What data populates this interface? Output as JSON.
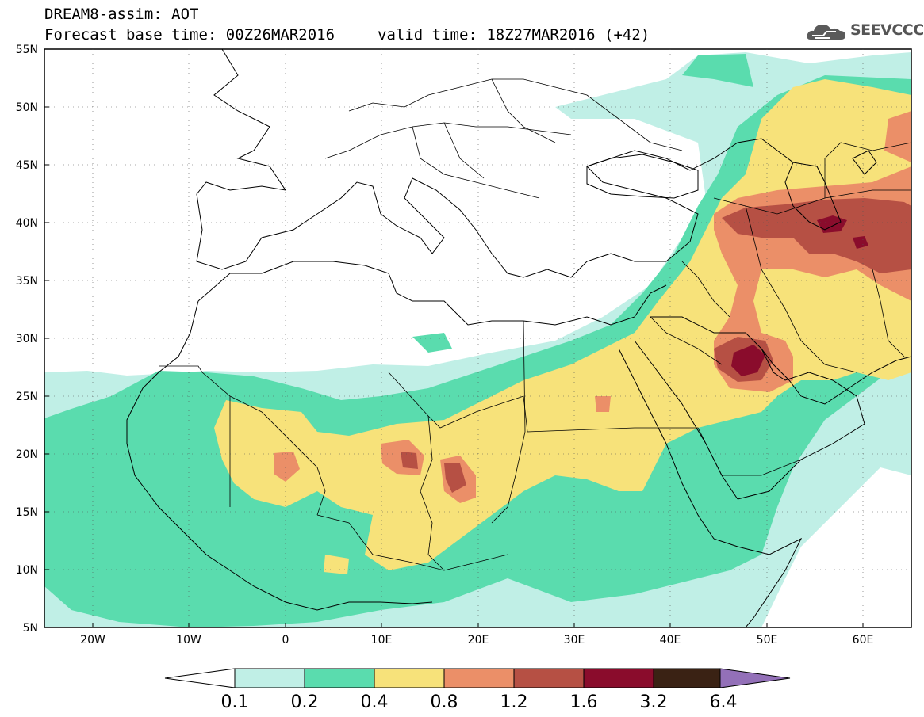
{
  "header": {
    "line1": "DREAM8-assim: AOT",
    "base_time": "Forecast base time: 00Z26MAR2016",
    "valid_time": "valid time: 18Z27MAR2016 (+42)"
  },
  "logo": {
    "text": "SEEVCCC",
    "icon": "cloud-icon"
  },
  "map": {
    "lon_range": [
      -25,
      65
    ],
    "lat_range": [
      5,
      55
    ],
    "lat_ticks": [
      "55N",
      "50N",
      "45N",
      "40N",
      "35N",
      "30N",
      "25N",
      "20N",
      "15N",
      "10N",
      "5N"
    ],
    "lon_ticks": [
      "20W",
      "10W",
      "0",
      "10E",
      "20E",
      "30E",
      "40E",
      "50E",
      "60E"
    ],
    "gridlines": "dotted",
    "ocean_color": "#ffffff",
    "borders_color": "#000000"
  },
  "colorbar": {
    "labels": [
      "0.1",
      "0.2",
      "0.4",
      "0.8",
      "1.2",
      "1.6",
      "3.2",
      "6.4"
    ],
    "colors": [
      "#ffffff",
      "#c0efe6",
      "#5adcae",
      "#f7e27a",
      "#eb8f68",
      "#b65044",
      "#8a0c2c",
      "#3a2214",
      "#9370b8"
    ]
  }
}
